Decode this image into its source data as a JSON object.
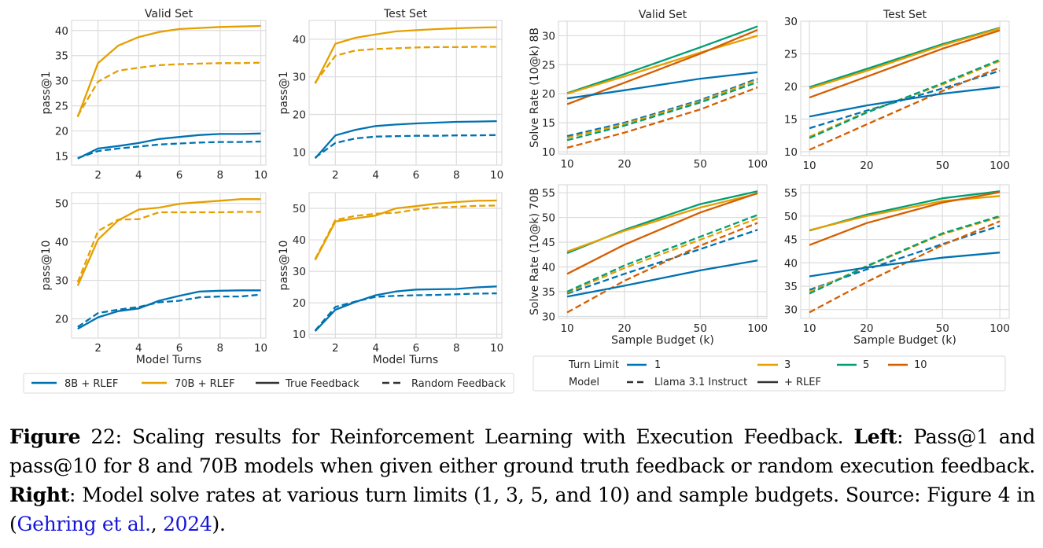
{
  "colors": {
    "c1": "#0072b2",
    "c3": "#e69f00",
    "c5": "#009e73",
    "c10": "#d55e00",
    "b8": "#0072b2",
    "b70": "#e69f00",
    "grid": "#dcdcdc",
    "text": "#262626"
  },
  "left_legend": {
    "items": [
      {
        "label": "8B + RLEF",
        "color": "#0072b2",
        "style": "solid"
      },
      {
        "label": "70B + RLEF",
        "color": "#e69f00",
        "style": "solid"
      },
      {
        "label": "True Feedback",
        "color": "#333333",
        "style": "solid"
      },
      {
        "label": "Random Feedback",
        "color": "#333333",
        "style": "dashed"
      }
    ]
  },
  "right_legend": {
    "row1_title": "Turn Limit",
    "row2_title": "Model",
    "turn_items": [
      {
        "label": "1",
        "color": "#0072b2"
      },
      {
        "label": "3",
        "color": "#e69f00"
      },
      {
        "label": "5",
        "color": "#009e73"
      },
      {
        "label": "10",
        "color": "#d55e00"
      }
    ],
    "model_items": [
      {
        "label": "Llama 3.1 Instruct",
        "style": "dashed"
      },
      {
        "label": "+ RLEF",
        "style": "solid"
      }
    ]
  },
  "caption": {
    "fig_label": "Figure",
    "fig_num": " 22",
    "text1": ": Scaling results for Reinforcement Learning with Execution Feedback. ",
    "left_label": "Left",
    "text2": ": Pass@1 and pass@10 for 8 and 70B models when given either ground truth feedback or random execution feedback.  ",
    "right_label": "Right",
    "text3": ":  Model solve rates at various turn limits (1, 3, 5, and 10) and sample budgets. Source: Figure 4 in (",
    "cite_author": "Gehring et al.",
    "cite_sep": ", ",
    "cite_year": "2024",
    "text4": ")."
  },
  "chart_data": [
    {
      "id": "p1",
      "type": "line",
      "title": "Valid Set",
      "xlabel": "",
      "ylabel": "pass@1",
      "xscale": "linear",
      "xlim": [
        0.7,
        10.25
      ],
      "ylim": [
        13.2,
        42.0
      ],
      "xticks": [
        2,
        4,
        6,
        8,
        10
      ],
      "yticks": [
        15,
        20,
        25,
        30,
        35,
        40
      ],
      "grid": true,
      "x": [
        1,
        2,
        3,
        4,
        5,
        6,
        7,
        8,
        9,
        10
      ],
      "series": [
        {
          "name": "70B + RLEF, True Feedback",
          "color": "#e69f00",
          "dash": false,
          "values": [
            22.8,
            33.5,
            37.0,
            38.7,
            39.7,
            40.3,
            40.5,
            40.7,
            40.8,
            40.9
          ]
        },
        {
          "name": "70B + RLEF, Random Feedback",
          "color": "#e69f00",
          "dash": true,
          "values": [
            23.0,
            29.8,
            32.0,
            32.6,
            33.1,
            33.3,
            33.4,
            33.5,
            33.5,
            33.6
          ]
        },
        {
          "name": "8B + RLEF, True Feedback",
          "color": "#0072b2",
          "dash": false,
          "values": [
            14.5,
            16.5,
            17.0,
            17.6,
            18.4,
            18.8,
            19.2,
            19.4,
            19.4,
            19.5
          ]
        },
        {
          "name": "8B + RLEF, Random Feedback",
          "color": "#0072b2",
          "dash": true,
          "values": [
            14.6,
            16.0,
            16.5,
            16.9,
            17.3,
            17.5,
            17.7,
            17.8,
            17.8,
            17.9
          ]
        }
      ]
    },
    {
      "id": "p2",
      "type": "line",
      "title": "Test Set",
      "xlabel": "",
      "ylabel": "pass@1",
      "xscale": "linear",
      "xlim": [
        0.7,
        10.25
      ],
      "ylim": [
        6.5,
        45.0
      ],
      "xticks": [
        2,
        4,
        6,
        8,
        10
      ],
      "yticks": [
        10,
        20,
        30,
        40
      ],
      "grid": true,
      "x": [
        1,
        2,
        3,
        4,
        5,
        6,
        7,
        8,
        9,
        10
      ],
      "series": [
        {
          "name": "70B + RLEF, True Feedback",
          "color": "#e69f00",
          "dash": false,
          "values": [
            28.2,
            38.8,
            40.4,
            41.3,
            42.1,
            42.4,
            42.7,
            42.9,
            43.1,
            43.2
          ]
        },
        {
          "name": "70B + RLEF, Random Feedback",
          "color": "#e69f00",
          "dash": true,
          "values": [
            28.5,
            35.6,
            37.0,
            37.4,
            37.6,
            37.8,
            37.9,
            37.9,
            38.0,
            38.0
          ]
        },
        {
          "name": "8B + RLEF, True Feedback",
          "color": "#0072b2",
          "dash": false,
          "values": [
            8.3,
            14.4,
            15.9,
            16.9,
            17.3,
            17.6,
            17.8,
            18.0,
            18.1,
            18.2
          ]
        },
        {
          "name": "8B + RLEF, Random Feedback",
          "color": "#0072b2",
          "dash": true,
          "values": [
            8.5,
            12.4,
            13.6,
            14.1,
            14.2,
            14.3,
            14.3,
            14.4,
            14.4,
            14.5
          ]
        }
      ]
    },
    {
      "id": "p3",
      "type": "line",
      "title": "",
      "xlabel": "Model Turns",
      "ylabel": "pass@10",
      "xscale": "linear",
      "xlim": [
        0.7,
        10.25
      ],
      "ylim": [
        15.0,
        52.8
      ],
      "xticks": [
        2,
        4,
        6,
        8,
        10
      ],
      "yticks": [
        20,
        30,
        40,
        50
      ],
      "grid": true,
      "x": [
        1,
        2,
        3,
        4,
        5,
        6,
        7,
        8,
        9,
        10
      ],
      "series": [
        {
          "name": "70B + RLEF, True Feedback",
          "color": "#e69f00",
          "dash": false,
          "values": [
            28.6,
            40.6,
            45.6,
            48.4,
            48.9,
            49.9,
            50.3,
            50.7,
            51.1,
            51.1
          ]
        },
        {
          "name": "70B + RLEF, Random Feedback",
          "color": "#e69f00",
          "dash": true,
          "values": [
            29.5,
            42.8,
            45.8,
            45.9,
            47.7,
            47.7,
            47.7,
            47.7,
            47.8,
            47.8
          ]
        },
        {
          "name": "8B + RLEF, True Feedback",
          "color": "#0072b2",
          "dash": false,
          "values": [
            17.4,
            20.4,
            22.0,
            22.7,
            24.7,
            26.0,
            27.1,
            27.3,
            27.4,
            27.4
          ]
        },
        {
          "name": "8B + RLEF, Random Feedback",
          "color": "#0072b2",
          "dash": true,
          "values": [
            17.9,
            21.5,
            22.4,
            23.1,
            24.3,
            24.7,
            25.6,
            25.8,
            25.8,
            26.3
          ]
        }
      ]
    },
    {
      "id": "p4",
      "type": "line",
      "title": "",
      "xlabel": "Model Turns",
      "ylabel": "pass@10",
      "xscale": "linear",
      "xlim": [
        0.7,
        10.25
      ],
      "ylim": [
        8.8,
        55.0
      ],
      "xticks": [
        2,
        4,
        6,
        8,
        10
      ],
      "yticks": [
        10,
        20,
        30,
        40,
        50
      ],
      "grid": true,
      "x": [
        1,
        2,
        3,
        4,
        5,
        6,
        7,
        8,
        9,
        10
      ],
      "series": [
        {
          "name": "70B + RLEF, True Feedback",
          "color": "#e69f00",
          "dash": false,
          "values": [
            33.6,
            45.8,
            46.8,
            47.7,
            50.0,
            50.7,
            51.5,
            52.0,
            52.4,
            52.5
          ]
        },
        {
          "name": "70B + RLEF, Random Feedback",
          "color": "#e69f00",
          "dash": true,
          "values": [
            33.9,
            46.3,
            47.6,
            48.3,
            48.6,
            49.6,
            50.3,
            50.5,
            50.8,
            50.9
          ]
        },
        {
          "name": "8B + RLEF, True Feedback",
          "color": "#0072b2",
          "dash": false,
          "values": [
            11.0,
            17.8,
            20.3,
            22.4,
            23.6,
            24.2,
            24.3,
            24.4,
            24.9,
            25.2
          ]
        },
        {
          "name": "8B + RLEF, Random Feedback",
          "color": "#0072b2",
          "dash": true,
          "values": [
            11.2,
            18.7,
            20.4,
            21.9,
            22.2,
            22.4,
            22.5,
            22.7,
            22.9,
            23.0
          ]
        }
      ]
    },
    {
      "id": "p5",
      "type": "line",
      "title": "Valid Set",
      "xlabel": "",
      "ylabel": "Solve Rate (10@k) 8B",
      "xscale": "log",
      "xlim": [
        9.0,
        112.0
      ],
      "ylim": [
        9.6,
        32.5
      ],
      "xticks": [
        10,
        20,
        50,
        100
      ],
      "yticks": [
        10,
        15,
        20,
        25,
        30
      ],
      "grid": true,
      "x": [
        10,
        20,
        50,
        100
      ],
      "series": [
        {
          "name": "Turn 5, + RLEF",
          "color": "#009e73",
          "dash": false,
          "values": [
            20.1,
            23.4,
            28.0,
            31.6
          ]
        },
        {
          "name": "Turn 3, + RLEF",
          "color": "#e69f00",
          "dash": false,
          "values": [
            20.0,
            23.0,
            27.1,
            30.0
          ]
        },
        {
          "name": "Turn 10, + RLEF",
          "color": "#d55e00",
          "dash": false,
          "values": [
            18.2,
            21.9,
            26.9,
            31.0
          ]
        },
        {
          "name": "Turn 1, + RLEF",
          "color": "#0072b2",
          "dash": false,
          "values": [
            19.2,
            20.6,
            22.6,
            23.7
          ]
        },
        {
          "name": "Turn 1, Llama 3.1 Instruct",
          "color": "#0072b2",
          "dash": true,
          "values": [
            12.7,
            15.0,
            18.9,
            22.6
          ]
        },
        {
          "name": "Turn 3, Llama 3.1 Instruct",
          "color": "#e69f00",
          "dash": true,
          "values": [
            12.4,
            14.8,
            18.7,
            22.4
          ]
        },
        {
          "name": "Turn 5, Llama 3.1 Instruct",
          "color": "#009e73",
          "dash": true,
          "values": [
            12.0,
            14.5,
            18.5,
            22.0
          ]
        },
        {
          "name": "Turn 10, Llama 3.1 Instruct",
          "color": "#d55e00",
          "dash": true,
          "values": [
            10.7,
            13.3,
            17.3,
            21.1
          ]
        }
      ]
    },
    {
      "id": "p6",
      "type": "line",
      "title": "Test Set",
      "xlabel": "",
      "ylabel": "",
      "xscale": "log",
      "xlim": [
        9.0,
        112.0
      ],
      "ylim": [
        9.4,
        30.0
      ],
      "xticks": [
        10,
        20,
        50,
        100
      ],
      "yticks": [
        10,
        15,
        20,
        25,
        30
      ],
      "grid": true,
      "x": [
        10,
        20,
        50,
        100
      ],
      "series": [
        {
          "name": "Turn 5, + RLEF",
          "color": "#009e73",
          "dash": false,
          "values": [
            19.9,
            22.7,
            26.5,
            29.0
          ]
        },
        {
          "name": "Turn 3, + RLEF",
          "color": "#e69f00",
          "dash": false,
          "values": [
            19.7,
            22.4,
            26.3,
            28.9
          ]
        },
        {
          "name": "Turn 10, + RLEF",
          "color": "#d55e00",
          "dash": false,
          "values": [
            18.3,
            21.5,
            25.8,
            28.6
          ]
        },
        {
          "name": "Turn 1, + RLEF",
          "color": "#0072b2",
          "dash": false,
          "values": [
            15.4,
            17.1,
            18.9,
            19.9
          ]
        },
        {
          "name": "Turn 1, Llama 3.1 Instruct",
          "color": "#0072b2",
          "dash": true,
          "values": [
            13.6,
            16.3,
            19.7,
            22.4
          ]
        },
        {
          "name": "Turn 3, Llama 3.1 Instruct",
          "color": "#e69f00",
          "dash": true,
          "values": [
            12.3,
            16.1,
            20.3,
            23.9
          ]
        },
        {
          "name": "Turn 5, Llama 3.1 Instruct",
          "color": "#009e73",
          "dash": true,
          "values": [
            12.1,
            16.0,
            20.5,
            24.1
          ]
        },
        {
          "name": "Turn 10, Llama 3.1 Instruct",
          "color": "#d55e00",
          "dash": true,
          "values": [
            10.3,
            14.2,
            19.3,
            22.9
          ]
        }
      ]
    },
    {
      "id": "p7",
      "type": "line",
      "title": "",
      "xlabel": "Sample Budget (k)",
      "ylabel": "Solve Rate (10@k) 70B",
      "xscale": "log",
      "xlim": [
        9.0,
        112.0
      ],
      "ylim": [
        29.6,
        56.6
      ],
      "xticks": [
        10,
        20,
        50,
        100
      ],
      "yticks": [
        30,
        35,
        40,
        45,
        50,
        55
      ],
      "grid": true,
      "x": [
        10,
        20,
        50,
        100
      ],
      "series": [
        {
          "name": "Turn 5, + RLEF",
          "color": "#009e73",
          "dash": false,
          "values": [
            42.8,
            47.5,
            52.7,
            55.3
          ]
        },
        {
          "name": "Turn 3, + RLEF",
          "color": "#e69f00",
          "dash": false,
          "values": [
            43.1,
            47.3,
            52.0,
            54.8
          ]
        },
        {
          "name": "Turn 10, + RLEF",
          "color": "#d55e00",
          "dash": false,
          "values": [
            38.6,
            44.5,
            51.0,
            54.9
          ]
        },
        {
          "name": "Turn 1, + RLEF",
          "color": "#0072b2",
          "dash": false,
          "values": [
            34.0,
            36.2,
            39.3,
            41.3
          ]
        },
        {
          "name": "Turn 1, Llama 3.1 Instruct",
          "color": "#0072b2",
          "dash": true,
          "values": [
            34.6,
            38.6,
            43.6,
            47.5
          ]
        },
        {
          "name": "Turn 3, Llama 3.1 Instruct",
          "color": "#e69f00",
          "dash": true,
          "values": [
            34.8,
            39.8,
            45.5,
            49.8
          ]
        },
        {
          "name": "Turn 5, Llama 3.1 Instruct",
          "color": "#009e73",
          "dash": true,
          "values": [
            35.0,
            40.3,
            46.1,
            50.5
          ]
        },
        {
          "name": "Turn 10, Llama 3.1 Instruct",
          "color": "#d55e00",
          "dash": true,
          "values": [
            30.8,
            37.2,
            44.3,
            48.9
          ]
        }
      ]
    },
    {
      "id": "p8",
      "type": "line",
      "title": "",
      "xlabel": "Sample Budget (k)",
      "ylabel": "",
      "xscale": "log",
      "xlim": [
        9.0,
        112.0
      ],
      "ylim": [
        28.1,
        56.7
      ],
      "xticks": [
        10,
        20,
        50,
        100
      ],
      "yticks": [
        30,
        35,
        40,
        45,
        50,
        55
      ],
      "grid": true,
      "x": [
        10,
        20,
        50,
        100
      ],
      "series": [
        {
          "name": "Turn 5, + RLEF",
          "color": "#009e73",
          "dash": false,
          "values": [
            46.9,
            50.3,
            53.8,
            55.3
          ]
        },
        {
          "name": "Turn 3, + RLEF",
          "color": "#e69f00",
          "dash": false,
          "values": [
            47.0,
            50.0,
            53.2,
            54.3
          ]
        },
        {
          "name": "Turn 10, + RLEF",
          "color": "#d55e00",
          "dash": false,
          "values": [
            43.8,
            48.5,
            52.9,
            55.1
          ]
        },
        {
          "name": "Turn 1, + RLEF",
          "color": "#0072b2",
          "dash": false,
          "values": [
            37.1,
            39.0,
            41.1,
            42.2
          ]
        },
        {
          "name": "Turn 1, Llama 3.1 Instruct",
          "color": "#0072b2",
          "dash": true,
          "values": [
            34.2,
            38.6,
            44.0,
            47.9
          ]
        },
        {
          "name": "Turn 3, Llama 3.1 Instruct",
          "color": "#e69f00",
          "dash": true,
          "values": [
            33.8,
            39.2,
            46.1,
            49.8
          ]
        },
        {
          "name": "Turn 5, Llama 3.1 Instruct",
          "color": "#009e73",
          "dash": true,
          "values": [
            33.4,
            39.3,
            46.3,
            50.0
          ]
        },
        {
          "name": "Turn 10, Llama 3.1 Instruct",
          "color": "#d55e00",
          "dash": true,
          "values": [
            29.4,
            35.9,
            43.8,
            48.9
          ]
        }
      ]
    }
  ]
}
